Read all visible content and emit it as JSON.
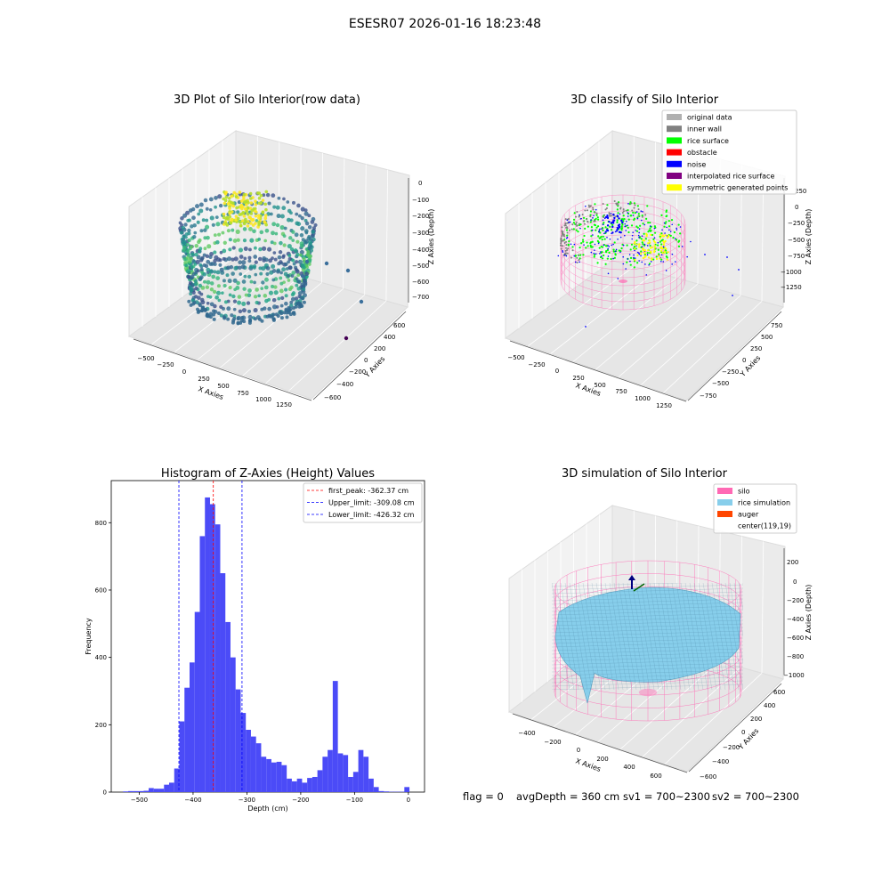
{
  "figure": {
    "suptitle": "ESESR07 2026-01-16 18:23:48",
    "footer": {
      "flag": "flag = 0",
      "avg_depth": "avgDepth = 360 cm",
      "sv1": "sv1 = 700~2300",
      "sv2": "sv2 = 700~2300"
    }
  },
  "colors": {
    "histogram_bar": "#4b4bf7",
    "first_peak_line": "#ff0000",
    "limit_line": "#0000ff",
    "silo_wire": "#ff69b4",
    "rice_simulation": "#87ceeb",
    "auger": "#ff4500"
  },
  "plot1": {
    "title": "3D Plot of Silo Interior(row data)",
    "xlabel": "X Axies",
    "ylabel": "Y Axies",
    "zlabel": "Z Axies (Depth)",
    "x_ticks": [
      "−500",
      "−250",
      "0",
      "250",
      "500",
      "750",
      "1000",
      "1250"
    ],
    "y_ticks": [
      "600",
      "400",
      "200",
      "0",
      "−200",
      "−400",
      "−600"
    ],
    "z_ticks": [
      "0",
      "−100",
      "−200",
      "−300",
      "−400",
      "−500",
      "−600",
      "−700"
    ]
  },
  "plot2": {
    "title": "3D classify of Silo Interior",
    "xlabel": "X Axies",
    "ylabel": "Y Axies",
    "zlabel": "Z Axies (Depth)",
    "x_ticks": [
      "−500",
      "−250",
      "0",
      "250",
      "500",
      "750",
      "1000",
      "1250"
    ],
    "y_ticks": [
      "750",
      "500",
      "250",
      "0",
      "−250",
      "−500",
      "−750"
    ],
    "z_ticks": [
      "250",
      "0",
      "−250",
      "−500",
      "−750",
      "−1000",
      "−1250"
    ],
    "legend": [
      {
        "label": "original data",
        "color": "#b0b0b0"
      },
      {
        "label": "inner wall",
        "color": "#808080"
      },
      {
        "label": "rice surface",
        "color": "#00ff00"
      },
      {
        "label": "obstacle",
        "color": "#ff0000"
      },
      {
        "label": "noise",
        "color": "#0000ff"
      },
      {
        "label": "interpolated rice surface",
        "color": "#800080"
      },
      {
        "label": "symmetric generated points",
        "color": "#ffff00"
      }
    ]
  },
  "plot4": {
    "title": "3D simulation of Silo Interior",
    "xlabel": "X Axies",
    "ylabel": "Y Axies",
    "zlabel": "Z Axies (Depth)",
    "x_ticks": [
      "−400",
      "−200",
      "0",
      "200",
      "400",
      "600"
    ],
    "y_ticks": [
      "600",
      "400",
      "200",
      "0",
      "−200",
      "−400",
      "−600"
    ],
    "z_ticks": [
      "200",
      "0",
      "−200",
      "−400",
      "−600",
      "−800",
      "−1000"
    ],
    "legend": [
      {
        "label": "silo",
        "color": "#ff69b4"
      },
      {
        "label": "rice simulation",
        "color": "#87ceeb"
      },
      {
        "label": "auger",
        "color": "#ff4500"
      },
      {
        "label": "center(119,19)",
        "color": "#ffffff"
      }
    ]
  },
  "chart_data": [
    {
      "type": "bar",
      "title": "Histogram of Z-Axies (Height) Values",
      "xlabel": "Depth (cm)",
      "ylabel": "Frequency",
      "xlim": [
        -552,
        30
      ],
      "ylim": [
        0,
        925
      ],
      "bin_width": 9.5,
      "x_ticks": [
        -500,
        -400,
        -300,
        -200,
        -100,
        0
      ],
      "y_ticks": [
        0,
        200,
        400,
        600,
        800
      ],
      "bin_starts": [
        -530,
        -520.5,
        -511,
        -501.5,
        -492,
        -482.5,
        -473,
        -463.5,
        -454,
        -444.5,
        -435,
        -425.5,
        -416,
        -406.5,
        -397,
        -387.5,
        -378,
        -368.5,
        -359,
        -349.5,
        -340,
        -330.5,
        -321,
        -311.5,
        -302,
        -292.5,
        -283,
        -273.5,
        -264,
        -254.5,
        -245,
        -235.5,
        -226,
        -216.5,
        -207,
        -197.5,
        -188,
        -178.5,
        -169,
        -159.5,
        -150,
        -140.5,
        -131,
        -121.5,
        -112,
        -102.5,
        -93,
        -83.5,
        -74,
        -64.5,
        -55,
        -45.5,
        -36,
        -26.5,
        -17,
        -7.5,
        0
      ],
      "values": [
        2,
        3,
        3,
        3,
        4,
        12,
        10,
        10,
        22,
        28,
        70,
        210,
        310,
        385,
        535,
        760,
        875,
        855,
        795,
        650,
        505,
        400,
        305,
        235,
        185,
        165,
        145,
        105,
        98,
        88,
        90,
        80,
        40,
        32,
        40,
        28,
        42,
        45,
        65,
        105,
        125,
        330,
        115,
        110,
        45,
        60,
        125,
        105,
        40,
        15,
        3,
        2,
        1,
        1,
        1,
        15,
        0
      ],
      "vlines": [
        {
          "x": -362.37,
          "label": "first_peak: -362.37 cm",
          "color": "#ff0000"
        },
        {
          "x": -309.08,
          "label": "Upper_limit: -309.08 cm",
          "color": "#0000ff"
        },
        {
          "x": -426.32,
          "label": "Lower_limit: -426.32 cm",
          "color": "#0000ff"
        }
      ],
      "legend_position": "top-right",
      "grid": false
    }
  ]
}
